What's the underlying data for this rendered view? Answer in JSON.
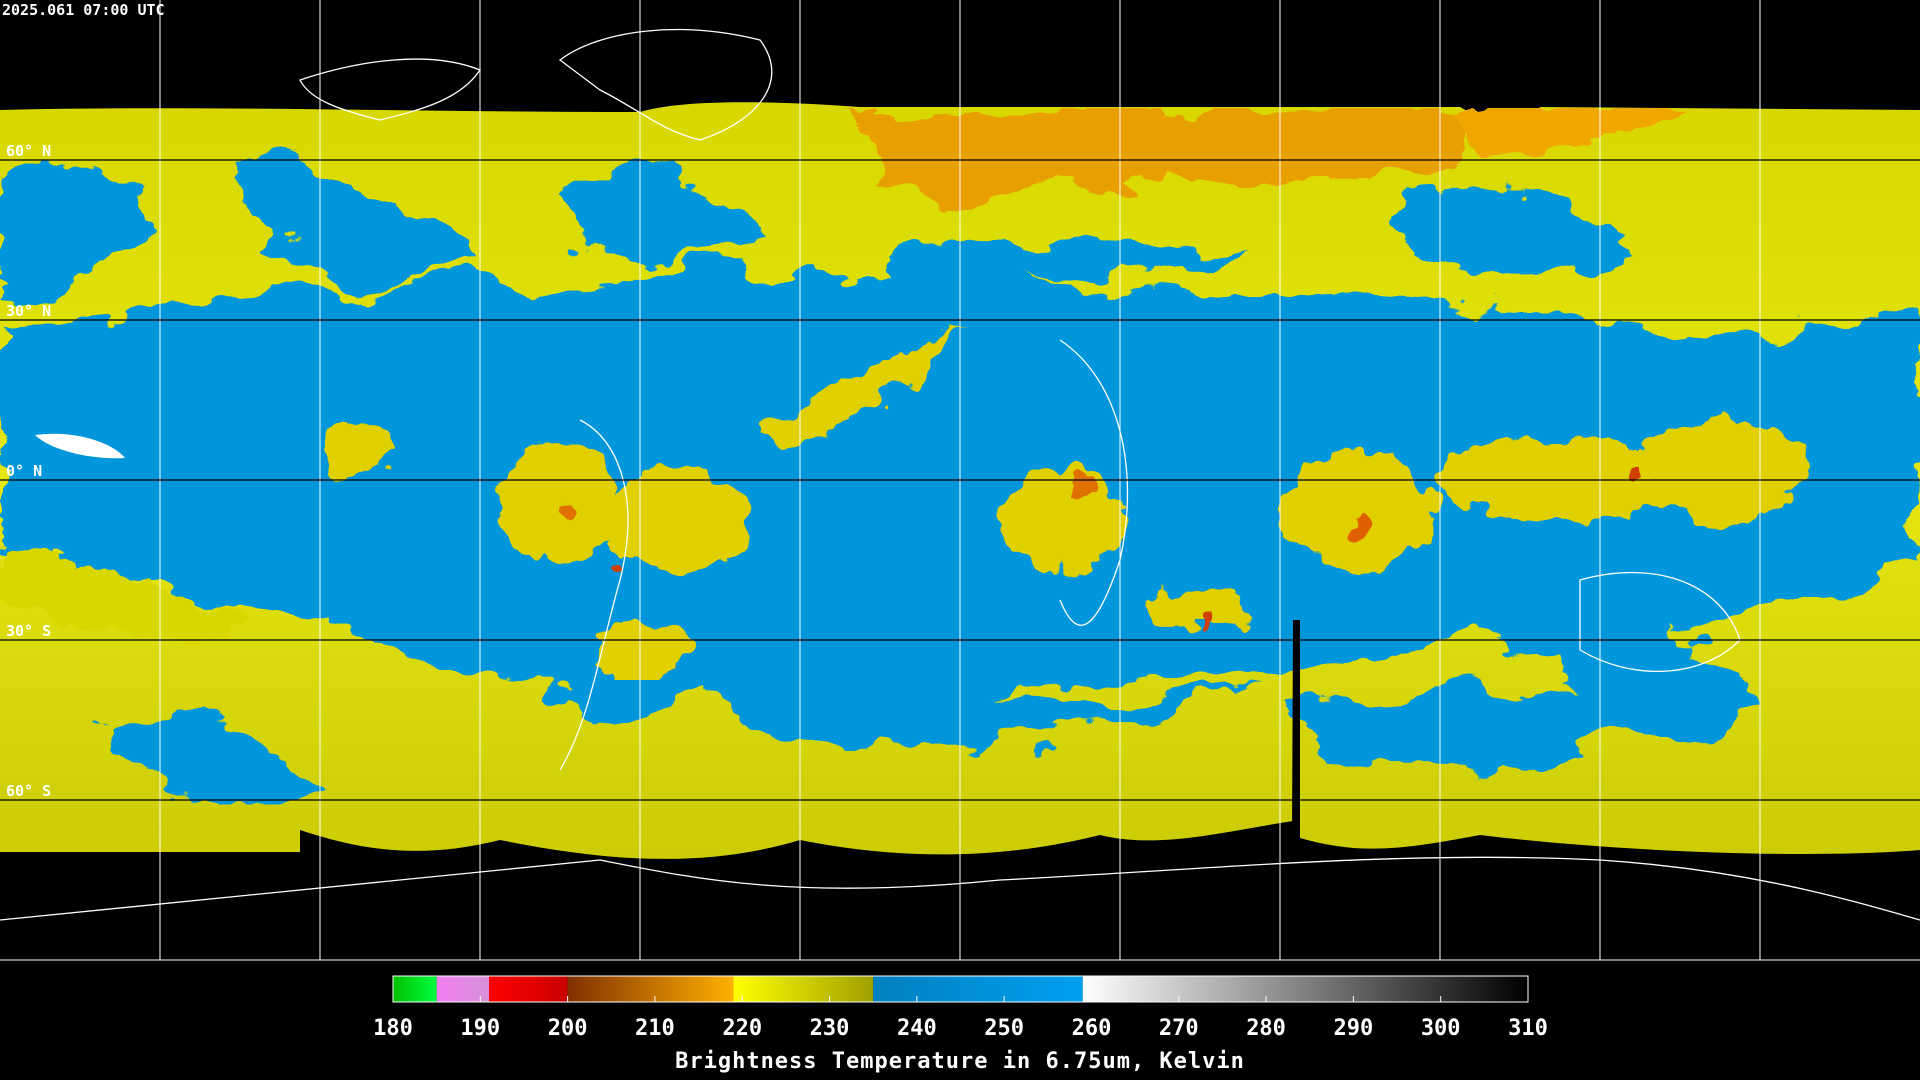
{
  "header": {
    "timestamp": "2025.061 07:00 UTC"
  },
  "graticule": {
    "lat_labels": [
      "60° N",
      "30° N",
      "0° N",
      "30° S",
      "60° S"
    ]
  },
  "colorbar": {
    "title": "Brightness Temperature in 6.75um, Kelvin",
    "range": [
      180,
      310
    ],
    "ticks": [
      180,
      190,
      200,
      210,
      220,
      230,
      240,
      250,
      260,
      270,
      280,
      290,
      300,
      310
    ],
    "segments": [
      {
        "from": 180,
        "to": 185,
        "colors": [
          "#00c000",
          "#00ff40"
        ]
      },
      {
        "from": 185,
        "to": 191,
        "colors": [
          "#f080f0",
          "#d890d8"
        ]
      },
      {
        "from": 191,
        "to": 200,
        "colors": [
          "#ff0000",
          "#c80000"
        ]
      },
      {
        "from": 200,
        "to": 219,
        "colors": [
          "#803000",
          "#ffb000"
        ]
      },
      {
        "from": 219,
        "to": 235,
        "colors": [
          "#ffff00",
          "#a0a000"
        ]
      },
      {
        "from": 235,
        "to": 259,
        "colors": [
          "#0080c0",
          "#00a0f0"
        ]
      },
      {
        "from": 259,
        "to": 310,
        "colors": [
          "#ffffff",
          "#000000"
        ]
      }
    ]
  }
}
